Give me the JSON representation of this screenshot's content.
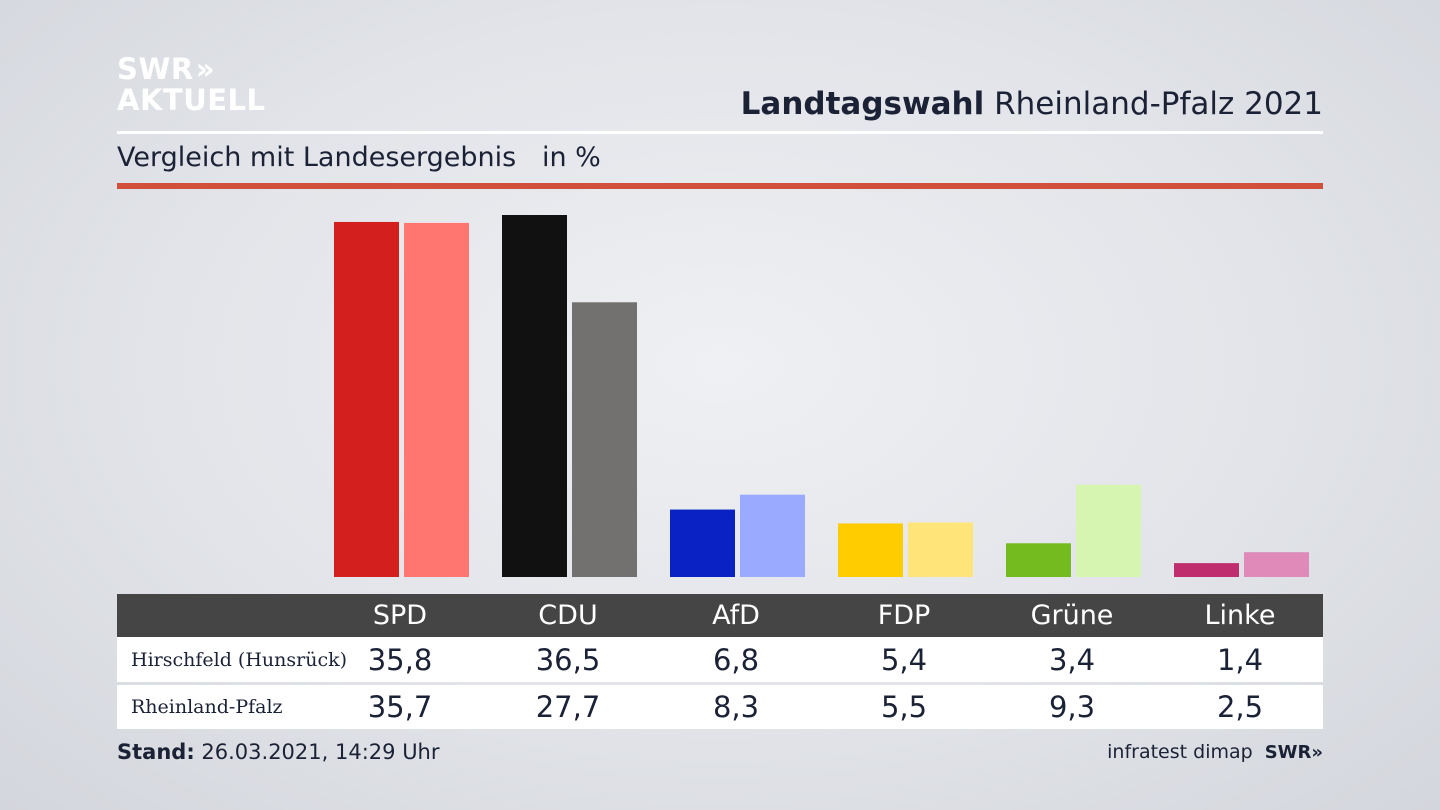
{
  "logo": {
    "line1": "SWR",
    "chevrons": "»",
    "line2": "AKTUELL"
  },
  "header": {
    "title_bold": "Landtagswahl",
    "title_rest": "Rheinland-Pfalz 2021"
  },
  "subtitle": {
    "text": "Vergleich mit Landesergebnis",
    "unit": "in %"
  },
  "chart_data": {
    "type": "bar",
    "categories": [
      "SPD",
      "CDU",
      "AfD",
      "FDP",
      "Grüne",
      "Linke"
    ],
    "series": [
      {
        "name": "Hirschfeld (Hunsrück)",
        "values": [
          35.8,
          36.5,
          6.8,
          5.4,
          3.4,
          1.4
        ],
        "colors": [
          "#d41f1f",
          "#111111",
          "#0a22c4",
          "#ffcc00",
          "#74bb1f",
          "#bf2d6e"
        ]
      },
      {
        "name": "Rheinland-Pfalz",
        "values": [
          35.7,
          27.7,
          8.3,
          5.5,
          9.3,
          2.5
        ],
        "colors": [
          "#ff7570",
          "#72716f",
          "#9aaaff",
          "#ffe47a",
          "#d5f5b0",
          "#df8ab8"
        ]
      }
    ],
    "ylim": [
      0,
      36.5
    ],
    "grid": false
  },
  "table": {
    "headers": [
      "SPD",
      "CDU",
      "AfD",
      "FDP",
      "Grüne",
      "Linke"
    ],
    "rows": [
      {
        "label": "Hirschfeld (Hunsrück)",
        "values": [
          "35,8",
          "36,5",
          "6,8",
          "5,4",
          "3,4",
          "1,4"
        ]
      },
      {
        "label": "Rheinland-Pfalz",
        "values": [
          "35,7",
          "27,7",
          "8,3",
          "5,5",
          "9,3",
          "2,5"
        ]
      }
    ]
  },
  "footer": {
    "stand_label": "Stand:",
    "stand_value": "26.03.2021, 14:29 Uhr",
    "source": "infratest dimap",
    "brand": "SWR»"
  }
}
